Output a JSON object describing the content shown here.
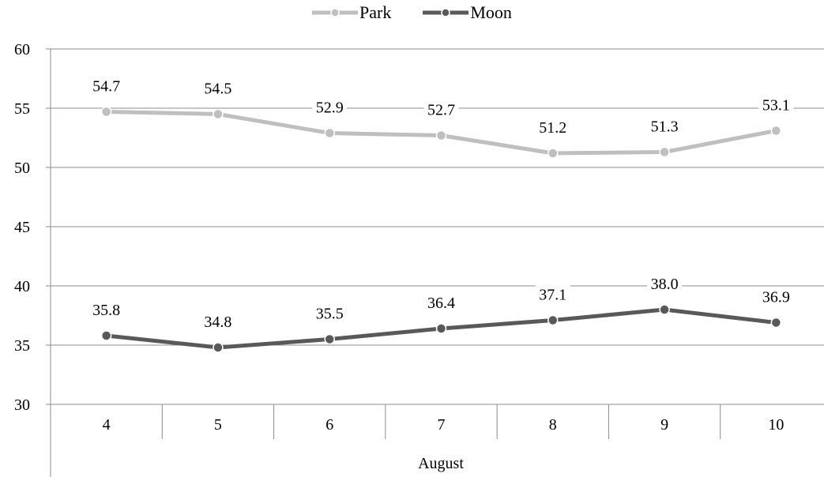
{
  "chart_data": {
    "type": "line",
    "categories": [
      "4",
      "5",
      "6",
      "7",
      "8",
      "9",
      "10"
    ],
    "group_label": "August",
    "series": [
      {
        "name": "Park",
        "values": [
          54.7,
          54.5,
          52.9,
          52.7,
          51.2,
          51.3,
          53.1
        ],
        "labels": [
          "54.7",
          "54.5",
          "52.9",
          "52.7",
          "51.2",
          "51.3",
          "53.1"
        ],
        "color": "#bfbfbf"
      },
      {
        "name": "Moon",
        "values": [
          35.8,
          34.8,
          35.5,
          36.4,
          37.1,
          38.0,
          36.9
        ],
        "labels": [
          "35.8",
          "34.8",
          "35.5",
          "36.4",
          "37.1",
          "38.0",
          "36.9"
        ],
        "color": "#595959"
      }
    ],
    "yticks": [
      "30",
      "35",
      "40",
      "45",
      "50",
      "55",
      "60"
    ],
    "ylim": [
      30,
      60
    ],
    "grid": true,
    "legend": "top-center"
  }
}
